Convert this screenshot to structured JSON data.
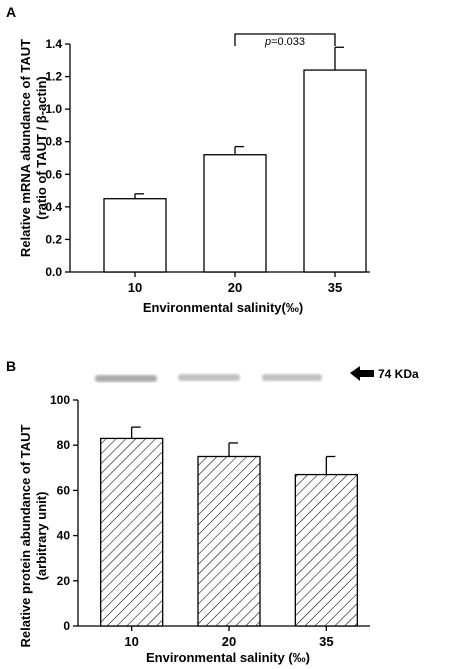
{
  "chart_data": [
    {
      "panel": "A",
      "type": "bar",
      "categories": [
        "10",
        "20",
        "35"
      ],
      "values": [
        0.45,
        0.72,
        1.24
      ],
      "errors": [
        0.03,
        0.05,
        0.14
      ],
      "xlabel": "Environmental salinity(‰)",
      "ylabel_line1": "Relative mRNA abundance of TAUT",
      "ylabel_line2": "(ratio of TAUT / β-actin)",
      "ylim": [
        0,
        1.4
      ],
      "yticks": [
        "0.0",
        "0.2",
        "0.4",
        "0.6",
        "0.8",
        "1.0",
        "1.2",
        "1.4"
      ],
      "bar_fill": "#ffffff",
      "annotation": {
        "text_italic": "p",
        "text_rest": "=0.033",
        "between": [
          "20",
          "35"
        ]
      }
    },
    {
      "panel": "B",
      "type": "bar",
      "categories": [
        "10",
        "20",
        "35"
      ],
      "values": [
        83,
        75,
        67
      ],
      "errors": [
        5,
        6,
        8
      ],
      "xlabel": "Environmental salinity (‰)",
      "ylabel_line1": "Relative protein abundance of TAUT",
      "ylabel_line2": "(arbitrary unit)",
      "ylim": [
        0,
        100
      ],
      "yticks": [
        "0",
        "20",
        "40",
        "60",
        "80",
        "100"
      ],
      "bar_fill": "hatched",
      "blot_label": "74 KDa"
    }
  ]
}
